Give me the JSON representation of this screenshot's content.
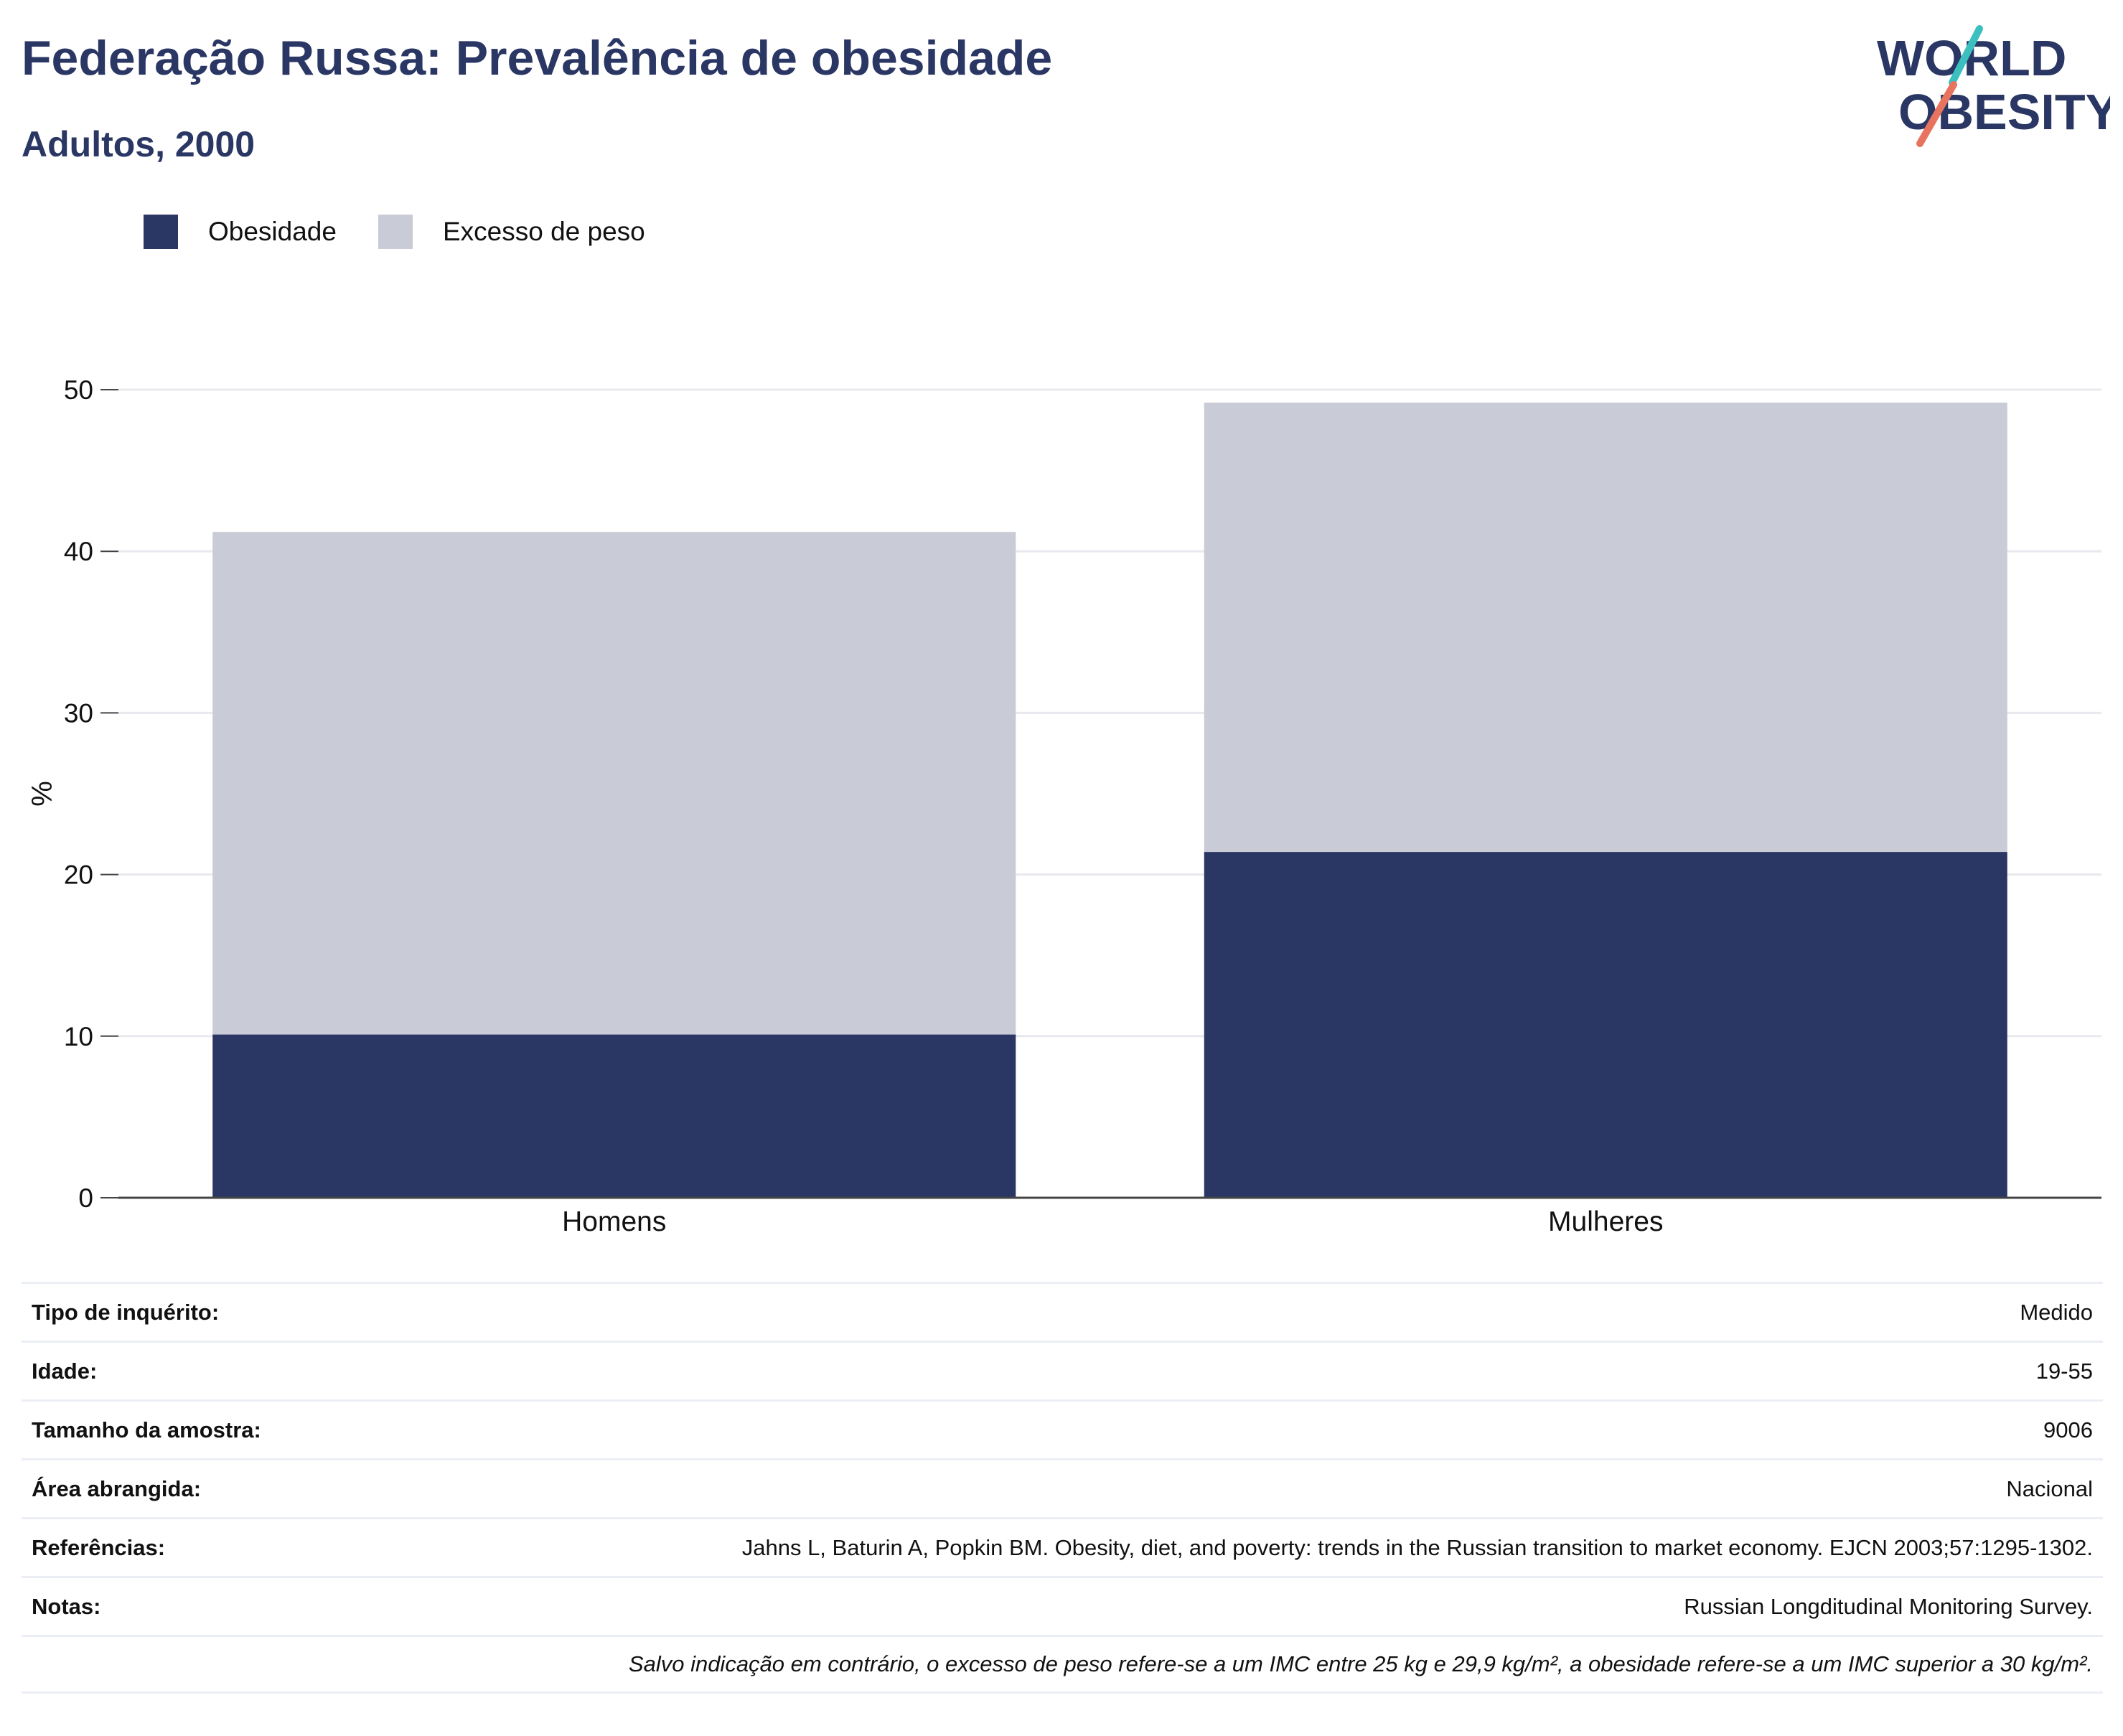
{
  "header": {
    "title": "Federação Russa: Prevalência de obesidade",
    "subtitle": "Adultos, 2000"
  },
  "logo": {
    "line1": "WORLD",
    "line2": "OBESITY"
  },
  "colors": {
    "obesity": "#2a3663",
    "overweight": "#c9ccd7",
    "title": "#2a3663",
    "grid": "#e8e8ee",
    "axis": "#444444"
  },
  "chart_data": {
    "type": "bar",
    "stacked": true,
    "categories": [
      "Homens",
      "Mulheres"
    ],
    "series": [
      {
        "name": "Obesidade",
        "values": [
          10.1,
          21.4
        ],
        "color": "#2a3663"
      },
      {
        "name": "Excesso de peso",
        "values": [
          31.1,
          27.8
        ],
        "color": "#c9ccd7"
      }
    ],
    "ylabel": "%",
    "ylim": [
      0,
      50
    ],
    "yticks": [
      0,
      10,
      20,
      30,
      40,
      50
    ],
    "grid": true,
    "legend_position": "top-left"
  },
  "info": {
    "rows": [
      {
        "label": "Tipo de inquérito:",
        "value": "Medido"
      },
      {
        "label": "Idade:",
        "value": "19-55"
      },
      {
        "label": "Tamanho da amostra:",
        "value": "9006"
      },
      {
        "label": "Área abrangida:",
        "value": "Nacional"
      },
      {
        "label": "Referências:",
        "value": "Jahns L, Baturin A, Popkin BM. Obesity, diet, and poverty: trends in the Russian transition to market economy. EJCN 2003;57:1295-1302."
      },
      {
        "label": "Notas:",
        "value": "Russian Longditudinal Monitoring Survey."
      }
    ],
    "footnote": "Salvo indicação em contrário, o excesso de peso refere-se a um IMC entre 25 kg e 29,9 kg/m², a obesidade refere-se a um IMC superior a 30 kg/m²."
  }
}
